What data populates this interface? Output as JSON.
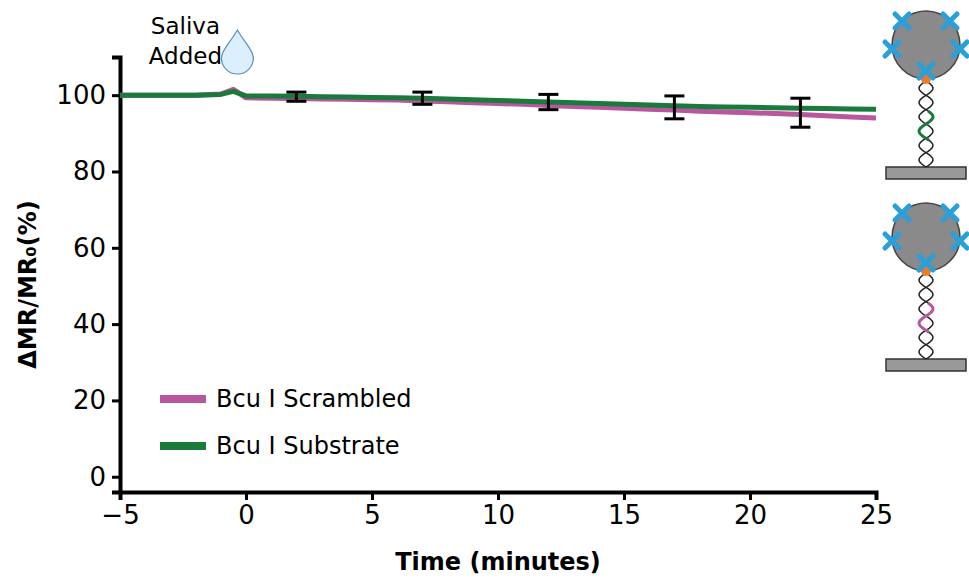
{
  "chart_data": {
    "type": "line",
    "x_label": "Time (minutes)",
    "y_label": "ΔMR/MR₀(%)",
    "annotation": {
      "lines": [
        "Saliva",
        "Added"
      ],
      "x": -0.5
    },
    "xlim": [
      -5,
      25
    ],
    "xticks": [
      {
        "value": -5,
        "label": "−5"
      },
      0,
      5,
      10,
      15,
      20,
      25
    ],
    "ylim": [
      -4,
      110
    ],
    "yticks": [
      0,
      20,
      40,
      60,
      80,
      100
    ],
    "grid": false,
    "legend": "lower left",
    "x": [
      -5,
      -4,
      -3,
      -2,
      -1,
      -0.5,
      0,
      1,
      2,
      3,
      4,
      5,
      6,
      7,
      8,
      9,
      10,
      11,
      12,
      13,
      14,
      15,
      16,
      17,
      18,
      19,
      20,
      21,
      22,
      23,
      24,
      25
    ],
    "series": [
      {
        "name": "Bcu I Scrambled",
        "color": "#b8569e",
        "values": [
          100,
          100,
          100,
          100,
          100.3,
          101.5,
          99.3,
          99.2,
          99.1,
          99.0,
          98.9,
          98.8,
          98.7,
          98.5,
          98.3,
          98.0,
          97.8,
          97.6,
          97.3,
          97.0,
          96.8,
          96.6,
          96.3,
          96.1,
          95.8,
          95.6,
          95.4,
          95.2,
          94.9,
          94.6,
          94.3,
          94.0
        ]
      },
      {
        "name": "Bcu I Substrate",
        "color": "#1a7a3c",
        "values": [
          100,
          100,
          100,
          100,
          100.2,
          101,
          99.8,
          99.8,
          99.7,
          99.6,
          99.5,
          99.4,
          99.3,
          99.2,
          99.0,
          98.8,
          98.6,
          98.4,
          98.2,
          98.0,
          97.8,
          97.6,
          97.4,
          97.2,
          97.0,
          96.9,
          96.8,
          96.7,
          96.6,
          96.5,
          96.4,
          96.3
        ]
      }
    ],
    "error_bars": {
      "color": "#000000",
      "x": [
        2,
        7,
        12,
        17,
        22
      ],
      "values": [
        99.6,
        99.2,
        98.2,
        96.8,
        95.4
      ],
      "errors": [
        1.2,
        1.6,
        2,
        3,
        3.8
      ]
    }
  }
}
